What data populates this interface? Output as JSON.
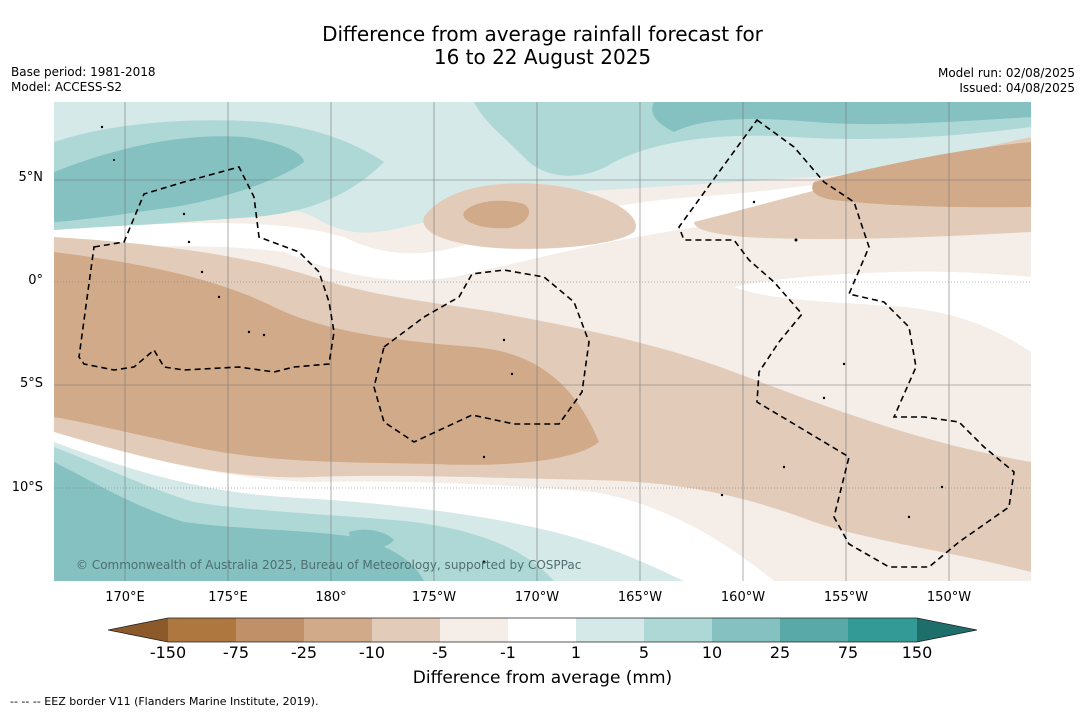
{
  "header": {
    "title_line1": "Difference from average rainfall forecast for",
    "title_line2": "16 to 22 August 2025",
    "base_period": "Base period: 1981-2018",
    "model": "Model: ACCESS-S2",
    "model_run": "Model run: 02/08/2025",
    "issued": "Issued: 04/08/2025"
  },
  "map": {
    "lat_labels": [
      "5°N",
      "0°",
      "5°S",
      "10°S"
    ],
    "lon_labels": [
      "170°E",
      "175°E",
      "180°",
      "175°W",
      "170°W",
      "165°W",
      "160°W",
      "155°W",
      "150°W"
    ],
    "credit": "© Commonwealth of Australia 2025, Bureau of Meteorology, supported by COSPPac",
    "gridline_color": "#777777",
    "eez_border_color": "#000000"
  },
  "legend": {
    "tick_labels": [
      "-150",
      "-75",
      "-25",
      "-10",
      "-5",
      "-1",
      "1",
      "5",
      "10",
      "25",
      "75",
      "150"
    ],
    "colors": [
      "#8c5a2a",
      "#ad773f",
      "#c09068",
      "#d0aa89",
      "#e2ccb9",
      "#f4ede8",
      "#ffffff",
      "#d4e9e8",
      "#aed8d6",
      "#84c1c0",
      "#58a9a7",
      "#339a96",
      "#1e6e6c"
    ],
    "title": "Difference from average (mm)"
  },
  "footnote": "--  --  -- EEZ border V11 (Flanders Marine Institute, 2019)."
}
